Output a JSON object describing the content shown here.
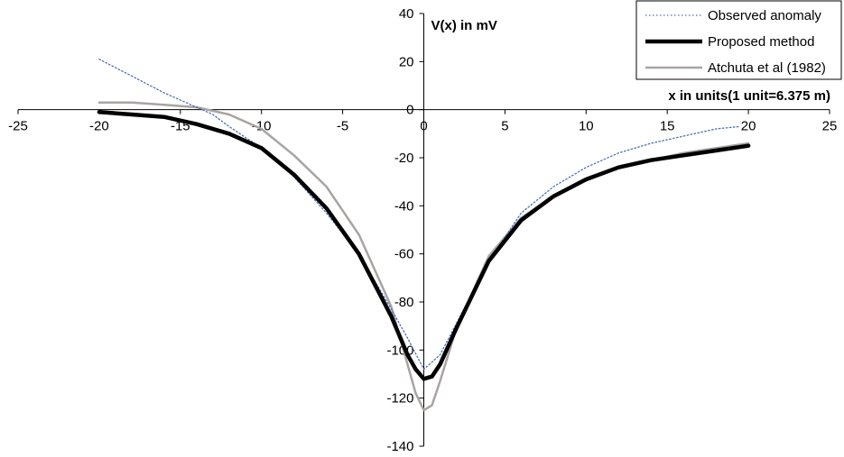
{
  "chart_data": {
    "type": "line",
    "title": "",
    "xlabel": "x in units(1 unit=6.375 m)",
    "ylabel": "V(x) in mV",
    "xlim": [
      -25,
      25
    ],
    "ylim": [
      -140,
      40
    ],
    "x_ticks": [
      -25,
      -20,
      -15,
      -10,
      -5,
      0,
      5,
      10,
      15,
      20,
      25
    ],
    "y_ticks": [
      40,
      20,
      0,
      -20,
      -40,
      -60,
      -80,
      -100,
      -120,
      -140
    ],
    "grid": false,
    "legend_position": "top-right",
    "series": [
      {
        "name": "Observed anomaly",
        "color": "#4a6fb5",
        "style": "dotted",
        "x": [
          -20,
          -18,
          -16,
          -14,
          -13,
          -12,
          -10,
          -8,
          -6,
          -4,
          -2,
          -1,
          0,
          1,
          2,
          4,
          6,
          8,
          10,
          12,
          14,
          16,
          18,
          19.5
        ],
        "y": [
          21,
          14,
          7,
          1,
          -2,
          -7,
          -16,
          -28,
          -43,
          -60,
          -83,
          -95,
          -108,
          -102,
          -89,
          -63,
          -43,
          -32,
          -24,
          -18,
          -14,
          -11,
          -8,
          -7
        ]
      },
      {
        "name": "Proposed method",
        "color": "#000000",
        "style": "solid-thick",
        "x": [
          -20,
          -18,
          -16,
          -14,
          -12,
          -10,
          -8,
          -6,
          -4,
          -2,
          -1,
          -0.5,
          0,
          0.5,
          1,
          2,
          4,
          6,
          8,
          10,
          12,
          14,
          16,
          18,
          20
        ],
        "y": [
          -1,
          -2,
          -3,
          -6,
          -10,
          -16,
          -27,
          -41,
          -60,
          -86,
          -102,
          -108,
          -112,
          -111,
          -106,
          -91,
          -63,
          -46,
          -36,
          -29,
          -24,
          -21,
          -19,
          -17,
          -15
        ]
      },
      {
        "name": "Atchuta et al (1982)",
        "color": "#a8a4a2",
        "style": "solid",
        "x": [
          -20,
          -18,
          -16,
          -14,
          -12,
          -10,
          -8,
          -6,
          -4,
          -2,
          -1,
          -0.5,
          0,
          0.5,
          1,
          2,
          4,
          6,
          8,
          10,
          12,
          14,
          16,
          18,
          20
        ],
        "y": [
          3,
          3,
          2,
          1,
          -2,
          -8,
          -19,
          -32,
          -52,
          -82,
          -106,
          -118,
          -125,
          -123,
          -113,
          -91,
          -61,
          -45,
          -36,
          -29,
          -24,
          -21,
          -18,
          -16,
          -14
        ]
      }
    ]
  }
}
